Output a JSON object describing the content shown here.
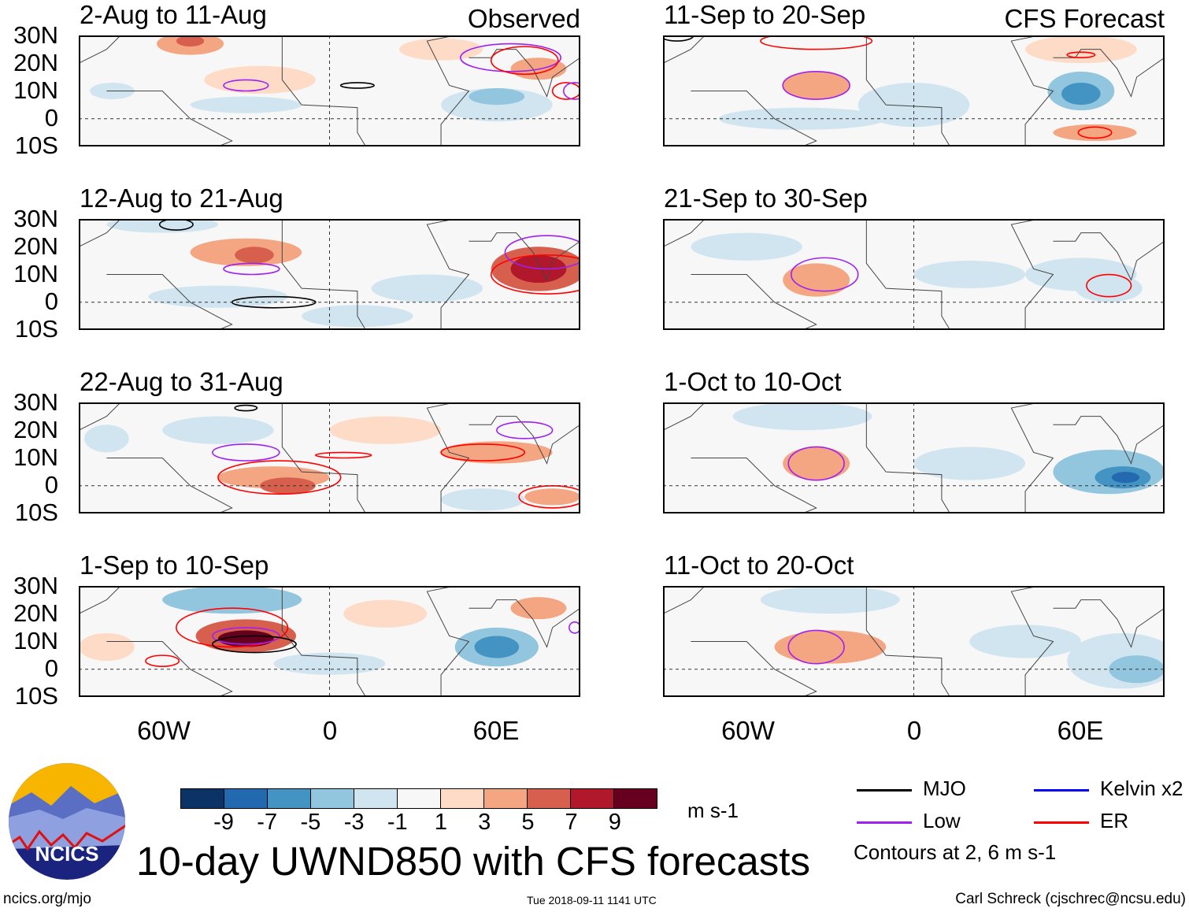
{
  "header": {
    "observed_label": "Observed",
    "forecast_label": "CFS Forecast"
  },
  "axes": {
    "lat_ticks": [
      "30N",
      "20N",
      "10N",
      "0",
      "10S"
    ],
    "lon_ticks": [
      "60W",
      "0",
      "60E"
    ],
    "lon_range": [
      -90,
      90
    ],
    "lat_range": [
      -10,
      30
    ]
  },
  "panels": [
    {
      "title": "2-Aug to 11-Aug",
      "blobs": [
        [
          -50,
          27,
          12,
          4,
          4
        ],
        [
          -50,
          28,
          5,
          2,
          6
        ],
        [
          -25,
          14,
          20,
          5,
          2
        ],
        [
          60,
          5,
          20,
          6,
          -3
        ],
        [
          60,
          8,
          10,
          3,
          -5
        ],
        [
          -78,
          10,
          8,
          3,
          -3
        ],
        [
          -30,
          5,
          20,
          3,
          -2
        ],
        [
          40,
          25,
          15,
          4,
          2
        ],
        [
          75,
          18,
          10,
          4,
          3
        ]
      ],
      "contours": [
        [
          "low",
          -30,
          12,
          8,
          2
        ],
        [
          "low",
          65,
          22,
          18,
          5
        ],
        [
          "mjo",
          10,
          12,
          6,
          1
        ],
        [
          "er",
          70,
          21,
          12,
          5
        ],
        [
          "er",
          85,
          10,
          5,
          3
        ],
        [
          "low",
          88,
          10,
          4,
          3
        ]
      ]
    },
    {
      "title": "12-Aug to 21-Aug",
      "blobs": [
        [
          -30,
          18,
          20,
          5,
          3
        ],
        [
          -27,
          17,
          7,
          3,
          5
        ],
        [
          75,
          12,
          17,
          8,
          5
        ],
        [
          75,
          12,
          10,
          5,
          7
        ],
        [
          -40,
          2,
          25,
          4,
          -2
        ],
        [
          10,
          -5,
          20,
          4,
          -2
        ],
        [
          -60,
          28,
          20,
          3,
          -2
        ],
        [
          35,
          5,
          20,
          5,
          -2
        ]
      ],
      "contours": [
        [
          "low",
          -28,
          12,
          10,
          2
        ],
        [
          "mjo",
          -20,
          0,
          15,
          2
        ],
        [
          "mjo",
          -55,
          28,
          6,
          2
        ],
        [
          "er",
          78,
          10,
          20,
          7
        ],
        [
          "low",
          78,
          18,
          15,
          6
        ]
      ]
    },
    {
      "title": "22-Aug to 31-Aug",
      "blobs": [
        [
          -20,
          3,
          20,
          4,
          3
        ],
        [
          -15,
          0,
          10,
          3,
          5
        ],
        [
          -80,
          17,
          8,
          5,
          -2
        ],
        [
          -40,
          20,
          20,
          5,
          -2
        ],
        [
          60,
          12,
          20,
          4,
          3
        ],
        [
          80,
          -4,
          10,
          3,
          4
        ],
        [
          20,
          20,
          20,
          5,
          2
        ],
        [
          55,
          -5,
          15,
          4,
          -2
        ]
      ],
      "contours": [
        [
          "low",
          -30,
          12,
          12,
          3
        ],
        [
          "er",
          -18,
          3,
          22,
          6
        ],
        [
          "er",
          5,
          11,
          10,
          1
        ],
        [
          "er",
          55,
          12,
          15,
          3
        ],
        [
          "low",
          70,
          20,
          10,
          3
        ],
        [
          "er",
          80,
          -4,
          12,
          4
        ],
        [
          "mjo",
          -30,
          28,
          4,
          1
        ]
      ]
    },
    {
      "title": "1-Sep to 10-Sep",
      "blobs": [
        [
          -30,
          12,
          18,
          6,
          5
        ],
        [
          -30,
          11,
          10,
          3,
          9
        ],
        [
          -35,
          25,
          25,
          5,
          -4
        ],
        [
          60,
          8,
          15,
          7,
          -4
        ],
        [
          60,
          8,
          8,
          4,
          -6
        ],
        [
          75,
          22,
          10,
          4,
          3
        ],
        [
          -80,
          8,
          10,
          5,
          2
        ],
        [
          20,
          20,
          15,
          5,
          2
        ],
        [
          0,
          2,
          20,
          4,
          -2
        ]
      ],
      "contours": [
        [
          "er",
          -35,
          15,
          20,
          7
        ],
        [
          "low",
          -30,
          12,
          12,
          3
        ],
        [
          "mjo",
          -27,
          9,
          15,
          3
        ],
        [
          "er",
          -60,
          3,
          6,
          2
        ],
        [
          "low",
          88,
          15,
          2,
          2
        ]
      ]
    },
    {
      "title": "11-Sep to 20-Sep",
      "blobs": [
        [
          -35,
          12,
          12,
          5,
          3
        ],
        [
          60,
          10,
          12,
          7,
          -5
        ],
        [
          60,
          9,
          7,
          4,
          -7
        ],
        [
          -40,
          0,
          30,
          4,
          -2
        ],
        [
          0,
          5,
          20,
          8,
          -2
        ],
        [
          65,
          -5,
          15,
          3,
          3
        ],
        [
          60,
          25,
          20,
          5,
          2
        ]
      ],
      "contours": [
        [
          "low",
          -35,
          12,
          12,
          5
        ],
        [
          "er",
          -35,
          28,
          20,
          3
        ],
        [
          "er",
          60,
          23,
          5,
          1
        ],
        [
          "er",
          65,
          -5,
          6,
          2
        ],
        [
          "mjo",
          -85,
          30,
          6,
          2
        ]
      ]
    },
    {
      "title": "21-Sep to 30-Sep",
      "blobs": [
        [
          -35,
          8,
          12,
          6,
          3
        ],
        [
          -35,
          8,
          7,
          4,
          4
        ],
        [
          60,
          10,
          20,
          6,
          -2
        ],
        [
          70,
          5,
          12,
          5,
          -3
        ],
        [
          20,
          10,
          20,
          5,
          -2
        ],
        [
          -60,
          20,
          20,
          5,
          -2
        ]
      ],
      "contours": [
        [
          "low",
          -32,
          10,
          12,
          6
        ],
        [
          "er",
          70,
          6,
          8,
          4
        ]
      ]
    },
    {
      "title": "1-Oct to 10-Oct",
      "blobs": [
        [
          -35,
          8,
          12,
          6,
          3
        ],
        [
          -35,
          8,
          7,
          4,
          4
        ],
        [
          70,
          5,
          20,
          8,
          -4
        ],
        [
          75,
          3,
          10,
          4,
          -6
        ],
        [
          76,
          3,
          5,
          2,
          -9
        ],
        [
          -40,
          25,
          25,
          5,
          -2
        ],
        [
          20,
          8,
          20,
          6,
          -2
        ]
      ],
      "contours": [
        [
          "low",
          -35,
          8,
          10,
          6
        ]
      ]
    },
    {
      "title": "11-Oct to 20-Oct",
      "blobs": [
        [
          -30,
          8,
          20,
          6,
          3
        ],
        [
          -33,
          8,
          10,
          4,
          4
        ],
        [
          75,
          3,
          20,
          10,
          -3
        ],
        [
          80,
          0,
          10,
          5,
          -4
        ],
        [
          -30,
          25,
          25,
          5,
          -2
        ],
        [
          40,
          10,
          20,
          6,
          -2
        ]
      ],
      "contours": [
        [
          "low",
          -35,
          8,
          10,
          6
        ]
      ]
    }
  ],
  "colorbar": {
    "colors": [
      "#0b3366",
      "#2369b0",
      "#4393c3",
      "#92c5de",
      "#d1e5f0",
      "#f7f7f7",
      "#fddbc7",
      "#f4a582",
      "#d6604d",
      "#b2182b",
      "#67001f"
    ],
    "ticks": [
      "-9",
      "-7",
      "-5",
      "-3",
      "-1",
      "1",
      "3",
      "5",
      "7",
      "9"
    ],
    "units": "m s-1"
  },
  "legend": {
    "items": [
      {
        "label": "MJO",
        "color": "#000000"
      },
      {
        "label": "Kelvin x2",
        "color": "#0000ff"
      },
      {
        "label": "Low",
        "color": "#a020f0"
      },
      {
        "label": "ER",
        "color": "#ff0000"
      }
    ],
    "note": "Contours at 2, 6 m s-1"
  },
  "footer": {
    "title": "10-day UWND850 with CFS forecasts",
    "url": "ncics.org/mjo",
    "timestamp": "Tue 2018-09-11 1141 UTC",
    "author": "Carl Schreck (cjschrec@ncsu.edu)",
    "logo_text": "NCICS"
  }
}
